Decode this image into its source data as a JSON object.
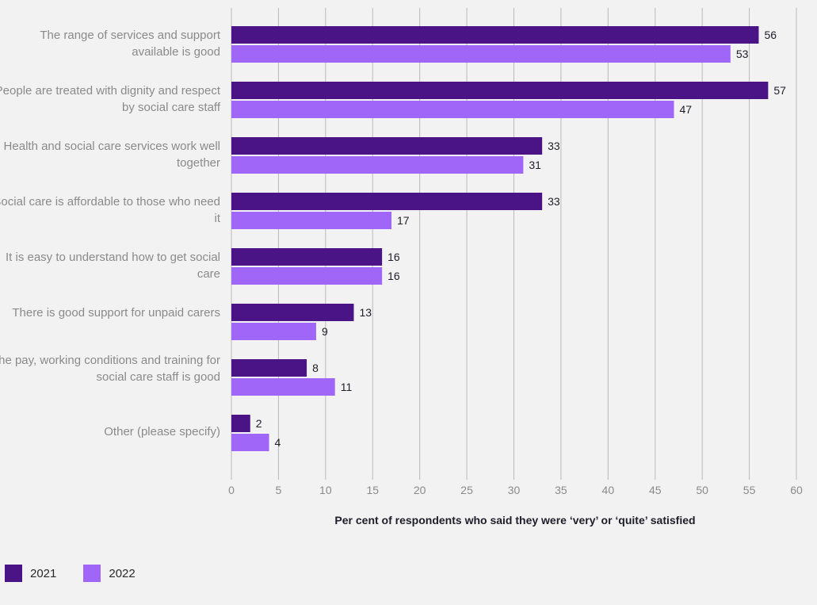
{
  "colors": {
    "s2021": "#4a1486",
    "s2022": "#a066f7",
    "grid": "#b9b9b9",
    "axis": "#8a8a8a",
    "label": "#1e1e2a"
  },
  "legend": {
    "label_2021": "2021",
    "label_2022": "2022"
  },
  "chart_data": {
    "type": "bar",
    "orientation": "horizontal",
    "categories": [
      "The range of services and support available is good",
      "People are treated with dignity and respect by social care staff",
      "Health and social care services work well together",
      "Social care is affordable to those who need it",
      "It is easy to understand how to get social care",
      "There is good support for unpaid carers",
      "The pay, working conditions and training for social care staff is good",
      "Other (please specify)"
    ],
    "series": [
      {
        "name": "2021",
        "values": [
          56,
          57,
          33,
          33,
          16,
          13,
          8,
          2
        ]
      },
      {
        "name": "2022",
        "values": [
          53,
          47,
          31,
          17,
          16,
          9,
          11,
          4
        ]
      }
    ],
    "xlabel": "Per cent of respondents who said they were ‘very’ or ‘quite’ satisfied",
    "xlim": [
      0,
      60
    ],
    "xticks": [
      "0",
      "5",
      "10",
      "15",
      "20",
      "25",
      "30",
      "35",
      "40",
      "45",
      "50",
      "55",
      "60"
    ],
    "grid": true,
    "legend_position": "bottom-left"
  }
}
